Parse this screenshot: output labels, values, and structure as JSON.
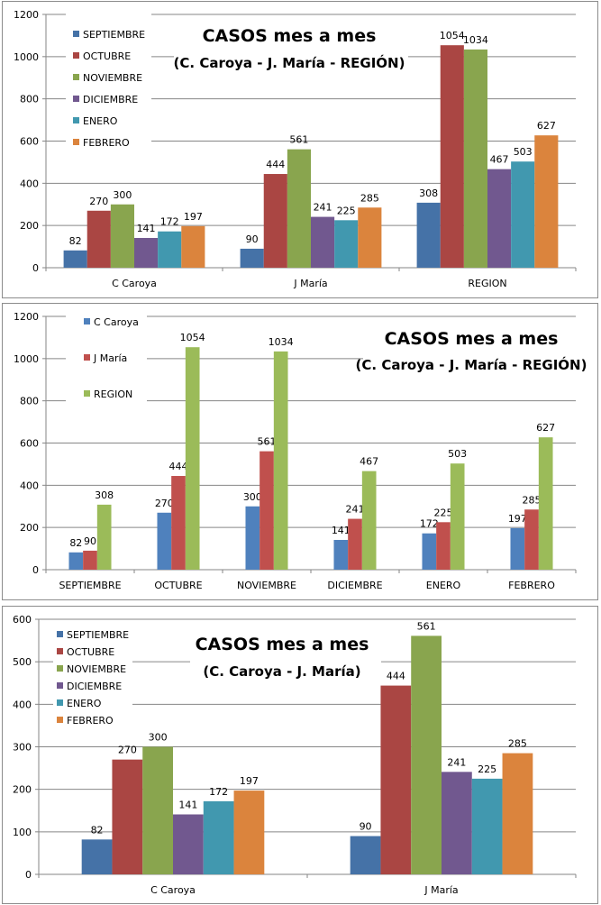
{
  "chart_data": [
    {
      "type": "bar",
      "title": "CASOS mes a mes",
      "subtitle": "(C. Caroya - J. María - REGIÓN)",
      "xlabel": "",
      "ylabel": "",
      "ylim": [
        0,
        1200
      ],
      "yticks": [
        0,
        200,
        400,
        600,
        800,
        1000,
        1200
      ],
      "grid": true,
      "legend_position": "top-left",
      "categories": [
        "C Caroya",
        "J María",
        "REGION"
      ],
      "series": [
        {
          "name": "SEPTIEMBRE",
          "color": "#4572a7",
          "values": [
            82,
            90,
            308
          ]
        },
        {
          "name": "OCTUBRE",
          "color": "#aa4643",
          "values": [
            270,
            444,
            1054
          ]
        },
        {
          "name": "NOVIEMBRE",
          "color": "#89a54e",
          "values": [
            300,
            561,
            1034
          ]
        },
        {
          "name": "DICIEMBRE",
          "color": "#71588f",
          "values": [
            141,
            241,
            467
          ]
        },
        {
          "name": "ENERO",
          "color": "#4198af",
          "values": [
            172,
            225,
            503
          ]
        },
        {
          "name": "FEBRERO",
          "color": "#db843d",
          "values": [
            197,
            285,
            627
          ]
        }
      ]
    },
    {
      "type": "bar",
      "title": "CASOS mes a mes",
      "subtitle": "(C. Caroya - J. María - REGIÓN)",
      "xlabel": "",
      "ylabel": "",
      "ylim": [
        0,
        1200
      ],
      "yticks": [
        0,
        200,
        400,
        600,
        800,
        1000,
        1200
      ],
      "grid": true,
      "legend_position": "top-left",
      "categories": [
        "SEPTIEMBRE",
        "OCTUBRE",
        "NOVIEMBRE",
        "DICIEMBRE",
        "ENERO",
        "FEBRERO"
      ],
      "series": [
        {
          "name": "C Caroya",
          "color": "#4f81bd",
          "values": [
            82,
            270,
            300,
            141,
            172,
            197
          ]
        },
        {
          "name": "J María",
          "color": "#c0504d",
          "values": [
            90,
            444,
            561,
            241,
            225,
            285
          ]
        },
        {
          "name": "REGION",
          "color": "#9bbb59",
          "values": [
            308,
            1054,
            1034,
            467,
            503,
            627
          ]
        }
      ]
    },
    {
      "type": "bar",
      "title": "CASOS mes a mes",
      "subtitle": "(C. Caroya - J. María)",
      "xlabel": "",
      "ylabel": "",
      "ylim": [
        0,
        600
      ],
      "yticks": [
        0,
        100,
        200,
        300,
        400,
        500,
        600
      ],
      "grid": true,
      "legend_position": "top-left",
      "categories": [
        "C Caroya",
        "J María"
      ],
      "series": [
        {
          "name": "SEPTIEMBRE",
          "color": "#4572a7",
          "values": [
            82,
            90
          ]
        },
        {
          "name": "OCTUBRE",
          "color": "#aa4643",
          "values": [
            270,
            444
          ]
        },
        {
          "name": "NOVIEMBRE",
          "color": "#89a54e",
          "values": [
            300,
            561
          ]
        },
        {
          "name": "DICIEMBRE",
          "color": "#71588f",
          "values": [
            141,
            241
          ]
        },
        {
          "name": "ENERO",
          "color": "#4198af",
          "values": [
            172,
            225
          ]
        },
        {
          "name": "FEBRERO",
          "color": "#db843d",
          "values": [
            197,
            285
          ]
        }
      ]
    }
  ]
}
